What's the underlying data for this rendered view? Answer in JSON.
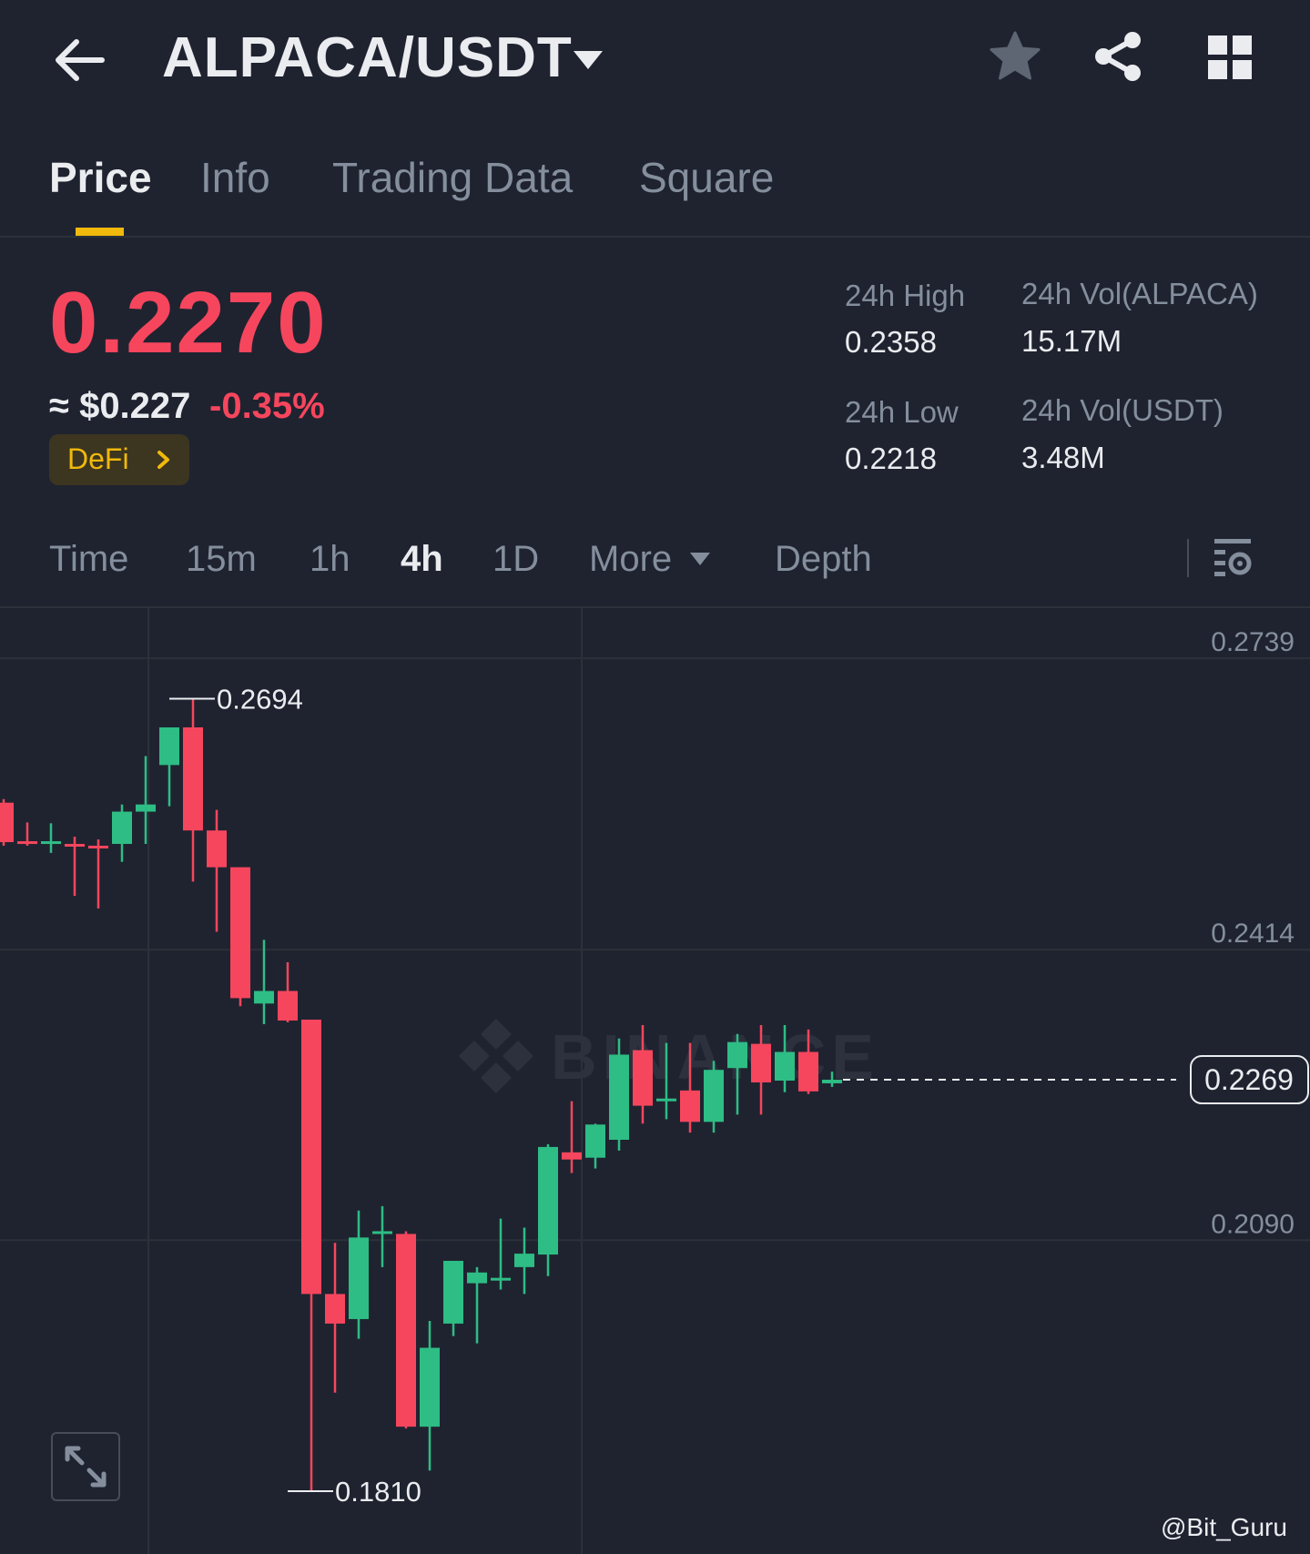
{
  "header": {
    "back_icon": "arrow-left-icon",
    "pair": "ALPACA/USDT",
    "caret_icon": "caret-down-icon",
    "favorite_icon": "star-icon",
    "share_icon": "share-icon",
    "menu_icon": "grid-icon"
  },
  "tabs": [
    {
      "label": "Price",
      "active": true
    },
    {
      "label": "Info",
      "active": false
    },
    {
      "label": "Trading Data",
      "active": false
    },
    {
      "label": "Square",
      "active": false
    }
  ],
  "price": {
    "last": "0.2270",
    "usd": "≈ $0.227",
    "change": "-0.35%",
    "tag": "DeFi",
    "colors": {
      "down": "#f6465d",
      "up": "#2ebd85",
      "accent": "#f0b90b"
    }
  },
  "stats": {
    "high_label": "24h High",
    "high_value": "0.2358",
    "low_label": "24h Low",
    "low_value": "0.2218",
    "vol_base_label": "24h Vol(ALPACA)",
    "vol_base_value": "15.17M",
    "vol_quote_label": "24h Vol(USDT)",
    "vol_quote_value": "3.48M"
  },
  "intervals": {
    "items": [
      {
        "label": "Time",
        "active": false
      },
      {
        "label": "15m",
        "active": false
      },
      {
        "label": "1h",
        "active": false
      },
      {
        "label": "4h",
        "active": true
      },
      {
        "label": "1D",
        "active": false
      },
      {
        "label": "More",
        "active": false
      },
      {
        "label": "Depth",
        "active": false
      }
    ],
    "settings_icon": "chart-settings-icon"
  },
  "chart_data": {
    "type": "candlestick",
    "interval": "4h",
    "y_ticks": [
      "0.2739",
      "0.2414",
      "0.2090"
    ],
    "ylim": [
      0.174,
      0.2795
    ],
    "current_price": 0.2269,
    "current_price_label": "0.2269",
    "high_marker": {
      "value": 0.2694,
      "label": "0.2694",
      "index": 7
    },
    "low_marker": {
      "value": 0.181,
      "label": "0.1810",
      "index": 12
    },
    "watermark": "BINANCE",
    "candles": [
      {
        "o": 0.2578,
        "h": 0.2582,
        "l": 0.253,
        "c": 0.2534
      },
      {
        "o": 0.2535,
        "h": 0.2556,
        "l": 0.253,
        "c": 0.2533
      },
      {
        "o": 0.2533,
        "h": 0.2555,
        "l": 0.2522,
        "c": 0.2535
      },
      {
        "o": 0.2532,
        "h": 0.254,
        "l": 0.2474,
        "c": 0.253
      },
      {
        "o": 0.253,
        "h": 0.2537,
        "l": 0.246,
        "c": 0.2528
      },
      {
        "o": 0.2532,
        "h": 0.2576,
        "l": 0.2512,
        "c": 0.2568
      },
      {
        "o": 0.2568,
        "h": 0.263,
        "l": 0.2532,
        "c": 0.2576
      },
      {
        "o": 0.262,
        "h": 0.2656,
        "l": 0.2574,
        "c": 0.2662
      },
      {
        "o": 0.2662,
        "h": 0.2694,
        "l": 0.249,
        "c": 0.2547
      },
      {
        "o": 0.2547,
        "h": 0.257,
        "l": 0.2434,
        "c": 0.2506
      },
      {
        "o": 0.2506,
        "h": 0.2506,
        "l": 0.2351,
        "c": 0.236
      },
      {
        "o": 0.2354,
        "h": 0.2425,
        "l": 0.2331,
        "c": 0.2368
      },
      {
        "o": 0.2368,
        "h": 0.24,
        "l": 0.2333,
        "c": 0.2335
      },
      {
        "o": 0.2336,
        "h": 0.2336,
        "l": 0.181,
        "c": 0.203
      },
      {
        "o": 0.203,
        "h": 0.2087,
        "l": 0.192,
        "c": 0.1997
      },
      {
        "o": 0.2002,
        "h": 0.2123,
        "l": 0.198,
        "c": 0.2093
      },
      {
        "o": 0.2097,
        "h": 0.2128,
        "l": 0.206,
        "c": 0.21
      },
      {
        "o": 0.2097,
        "h": 0.21,
        "l": 0.188,
        "c": 0.1882
      },
      {
        "o": 0.1882,
        "h": 0.2,
        "l": 0.1833,
        "c": 0.197
      },
      {
        "o": 0.1997,
        "h": 0.2064,
        "l": 0.1983,
        "c": 0.2067
      },
      {
        "o": 0.2042,
        "h": 0.206,
        "l": 0.1975,
        "c": 0.2054
      },
      {
        "o": 0.2047,
        "h": 0.2114,
        "l": 0.2035,
        "c": 0.2048
      },
      {
        "o": 0.206,
        "h": 0.2104,
        "l": 0.203,
        "c": 0.2075
      },
      {
        "o": 0.2074,
        "h": 0.2197,
        "l": 0.205,
        "c": 0.2194
      },
      {
        "o": 0.2188,
        "h": 0.2245,
        "l": 0.2165,
        "c": 0.218
      },
      {
        "o": 0.2182,
        "h": 0.222,
        "l": 0.217,
        "c": 0.2219
      },
      {
        "o": 0.2202,
        "h": 0.2315,
        "l": 0.219,
        "c": 0.2297
      },
      {
        "o": 0.2302,
        "h": 0.233,
        "l": 0.222,
        "c": 0.224
      },
      {
        "o": 0.2248,
        "h": 0.231,
        "l": 0.2225,
        "c": 0.2248
      },
      {
        "o": 0.2257,
        "h": 0.231,
        "l": 0.221,
        "c": 0.2222
      },
      {
        "o": 0.2222,
        "h": 0.229,
        "l": 0.221,
        "c": 0.228
      },
      {
        "o": 0.2282,
        "h": 0.232,
        "l": 0.223,
        "c": 0.2311
      },
      {
        "o": 0.2309,
        "h": 0.233,
        "l": 0.223,
        "c": 0.2266
      },
      {
        "o": 0.2268,
        "h": 0.233,
        "l": 0.2255,
        "c": 0.23
      },
      {
        "o": 0.23,
        "h": 0.2325,
        "l": 0.2253,
        "c": 0.2256
      },
      {
        "o": 0.2265,
        "h": 0.2278,
        "l": 0.2261,
        "c": 0.2269
      }
    ]
  },
  "footer": {
    "expand_icon": "expand-icon",
    "credit": "@Bit_Guru"
  }
}
